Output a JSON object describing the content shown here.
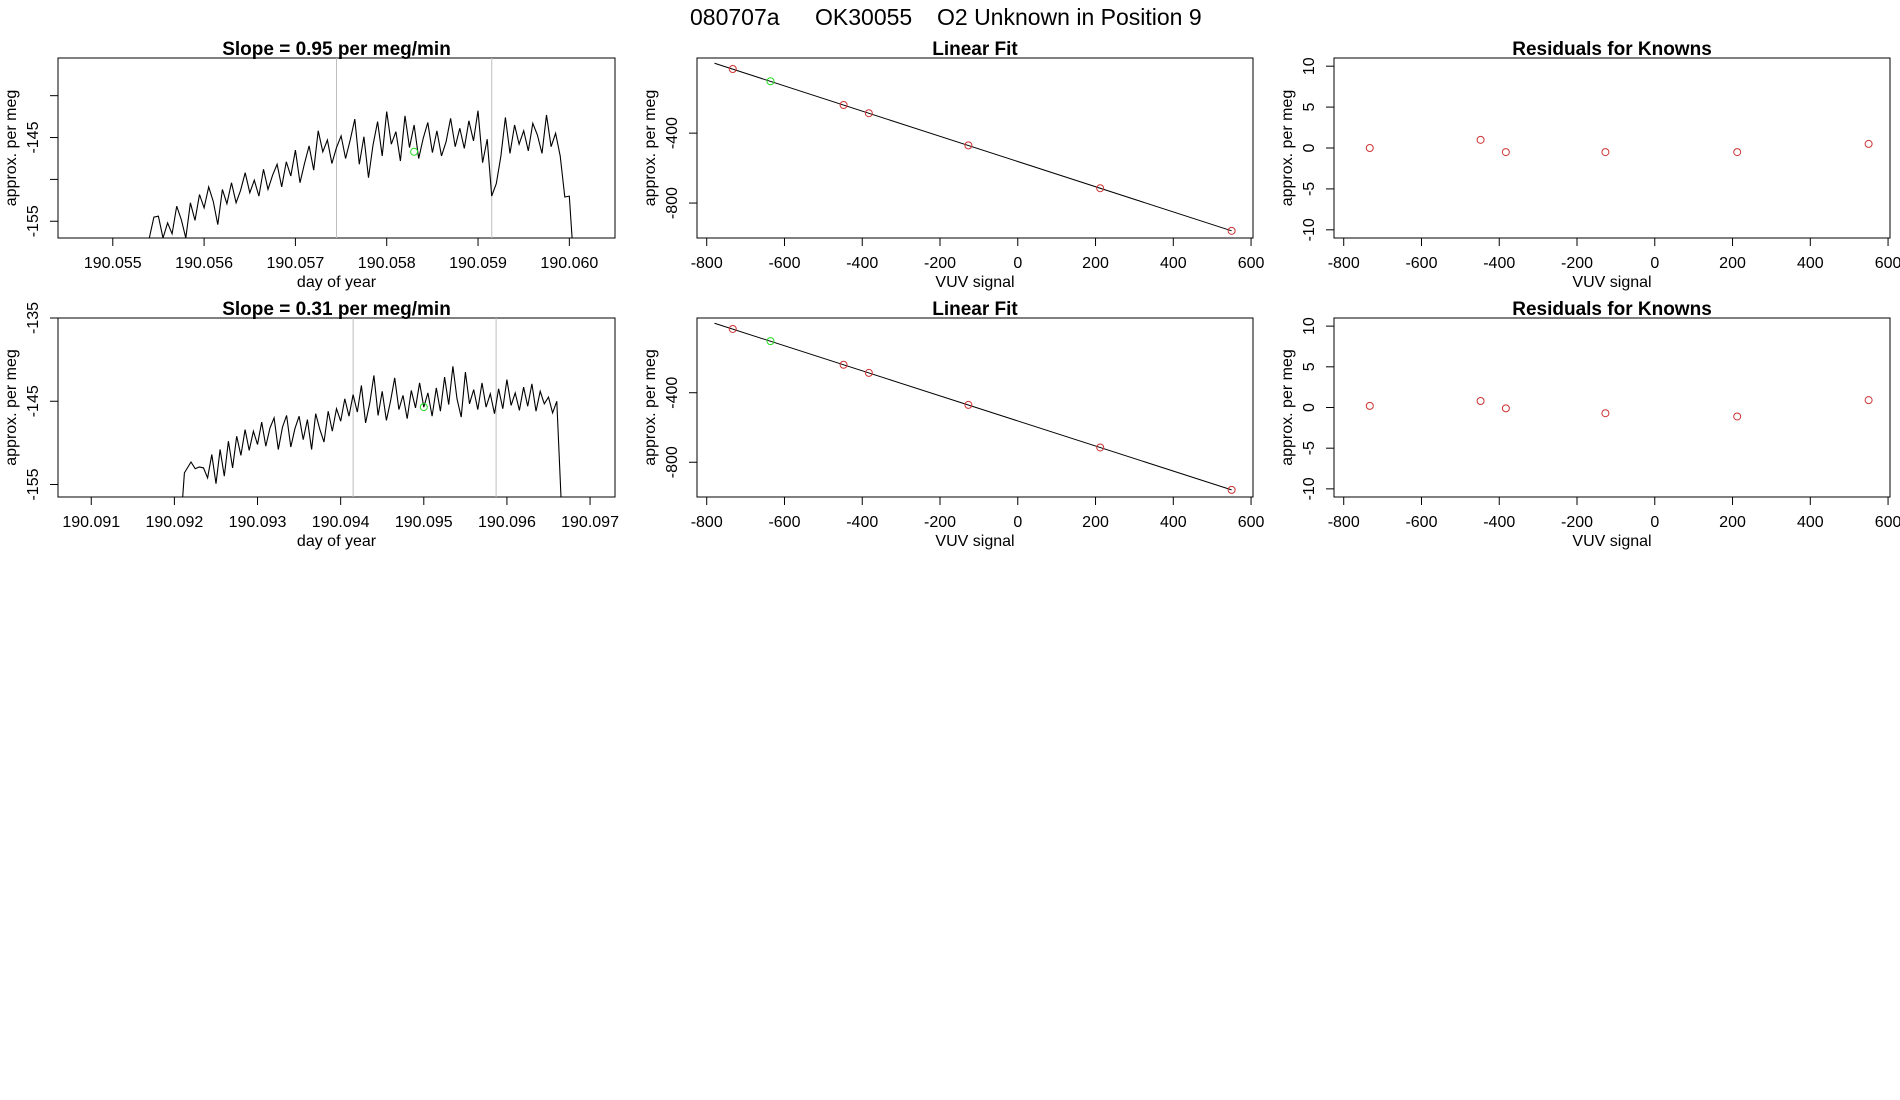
{
  "header": {
    "run_id": "080707a",
    "tank_id": "OK30055",
    "description": "O2 Unknown in Position  9"
  },
  "colors": {
    "trace": "#000000",
    "fit_line": "#000000",
    "known_point": "#cd3333",
    "unknown_point": "#22dd22",
    "marker_line": "#bebebe",
    "frame": "#000000"
  },
  "chart_data": [
    {
      "type": "line",
      "row": 1,
      "title": "Slope =  0.95  per meg/min",
      "xlabel": "day of year",
      "ylabel": "approx. per meg",
      "xlim": [
        190.0544,
        190.0605
      ],
      "ylim": [
        -157,
        -135.5
      ],
      "xticks": [
        190.055,
        190.056,
        190.057,
        190.058,
        190.059,
        190.06
      ],
      "xtick_labels": [
        "190.055",
        "190.056",
        "190.057",
        "190.058",
        "190.059",
        "190.060"
      ],
      "yticks": [
        -155,
        -150,
        -145,
        -140
      ],
      "ytick_labels": [
        "-155",
        "",
        "-145",
        ""
      ],
      "vlines": [
        190.05745,
        190.05915
      ],
      "highlight_point": {
        "x": 190.0583,
        "y": -146.7
      },
      "series": [
        {
          "x": [
            190.055,
            190.0554,
            190.05545,
            190.0555,
            190.05555,
            190.0556,
            190.05565,
            190.0557,
            190.05575,
            190.0558,
            190.05585,
            190.0559,
            190.05595,
            190.056,
            190.05605,
            190.0561,
            190.05615,
            190.0562,
            190.05625,
            190.0563,
            190.05635,
            190.0564,
            190.05645,
            190.0565,
            190.05655,
            190.0566,
            190.05665,
            190.0567,
            190.05675,
            190.0568,
            190.05685,
            190.0569,
            190.05695,
            190.057,
            190.05705,
            190.0571,
            190.05715,
            190.0572,
            190.05725,
            190.0573,
            190.05735,
            190.0574,
            190.05745,
            190.0575,
            190.05755,
            190.0576,
            190.05765,
            190.0577,
            190.05775,
            190.0578,
            190.05785,
            190.0579,
            190.05795,
            190.058,
            190.05805,
            190.0581,
            190.05815,
            190.0582,
            190.05825,
            190.0583,
            190.05835,
            190.0584,
            190.05845,
            190.0585,
            190.05855,
            190.0586,
            190.05865,
            190.0587,
            190.05875,
            190.0588,
            190.05885,
            190.0589,
            190.05895,
            190.059,
            190.05905,
            190.0591,
            190.05915,
            190.0592,
            190.05925,
            190.0593,
            190.05935,
            190.0594,
            190.05945,
            190.0595,
            190.05955,
            190.0596,
            190.05965,
            190.0597,
            190.05975,
            190.0598,
            190.05985,
            190.0599,
            190.05995,
            190.06,
            190.06003
          ],
          "y": [
            -157,
            -157,
            -154.5,
            -154.4,
            -157,
            -155.2,
            -156.5,
            -153.2,
            -154.8,
            -157,
            -152.8,
            -154.9,
            -151.8,
            -153.4,
            -150.9,
            -152.6,
            -155.4,
            -151.2,
            -152.9,
            -150.4,
            -152.8,
            -151.3,
            -149.2,
            -151.6,
            -150.1,
            -152.0,
            -148.8,
            -151.2,
            -149.5,
            -148.2,
            -150.9,
            -147.9,
            -149.6,
            -146.5,
            -150.4,
            -148.1,
            -146.0,
            -148.9,
            -144.2,
            -146.7,
            -145.3,
            -148.1,
            -146.2,
            -144.8,
            -147.5,
            -145.3,
            -142.8,
            -148.2,
            -144.9,
            -149.8,
            -145.9,
            -143.1,
            -147.2,
            -141.9,
            -145.8,
            -144.3,
            -147.8,
            -142.4,
            -146.2,
            -143.5,
            -147.5,
            -145.1,
            -143.2,
            -146.8,
            -144.2,
            -147.2,
            -145.5,
            -142.7,
            -146.1,
            -143.9,
            -146.3,
            -143.0,
            -145.4,
            -141.8,
            -148.0,
            -145.2,
            -152.0,
            -150.5,
            -147.2,
            -142.6,
            -146.9,
            -143.5,
            -145.8,
            -144.2,
            -146.6,
            -143.3,
            -144.7,
            -146.9,
            -142.3,
            -146.1,
            -144.5,
            -147.2,
            -152.1,
            -152.0,
            -157
          ]
        }
      ]
    },
    {
      "type": "scatter",
      "row": 1,
      "title": "Linear Fit",
      "xlabel": "VUV signal",
      "ylabel": "approx. per meg",
      "xlim": [
        -825,
        605
      ],
      "ylim": [
        -1000,
        30
      ],
      "xticks": [
        -800,
        -600,
        -400,
        -200,
        0,
        200,
        400,
        600
      ],
      "xtick_labels": [
        "-800",
        "-600",
        "-400",
        "-200",
        "0",
        "200",
        "400",
        "600"
      ],
      "yticks": [
        -800,
        -400
      ],
      "ytick_labels": [
        "-800",
        "-400"
      ],
      "fit_line": {
        "x": [
          -780,
          550
        ],
        "y": [
          0,
          -959
        ]
      },
      "knowns": {
        "x": [
          -733,
          -448,
          -383,
          -127,
          212,
          550
        ],
        "y": [
          -33,
          -239,
          -286,
          -470,
          -715,
          -959
        ]
      },
      "unknown": {
        "x": [
          -636
        ],
        "y": [
          -103
        ]
      }
    },
    {
      "type": "scatter",
      "row": 1,
      "title": "Residuals for Knowns",
      "xlabel": "VUV signal",
      "ylabel": "approx. per meg",
      "xlim": [
        -825,
        605
      ],
      "ylim": [
        -11,
        11
      ],
      "xticks": [
        -800,
        -600,
        -400,
        -200,
        0,
        200,
        400,
        600
      ],
      "xtick_labels": [
        "-800",
        "-600",
        "-400",
        "-200",
        "0",
        "200",
        "400",
        "600"
      ],
      "yticks": [
        -10,
        -5,
        0,
        5,
        10
      ],
      "ytick_labels": [
        "-10",
        "-5",
        "0",
        "5",
        "10"
      ],
      "knowns": {
        "x": [
          -733,
          -448,
          -383,
          -127,
          212,
          550
        ],
        "y": [
          0.0,
          1.0,
          -0.5,
          -0.5,
          -0.5,
          0.5
        ]
      }
    },
    {
      "type": "line",
      "row": 2,
      "title": "Slope =  0.31  per meg/min",
      "xlabel": "day of year",
      "ylabel": "approx. per meg",
      "xlim": [
        190.0906,
        190.0973
      ],
      "ylim": [
        -156.5,
        -135
      ],
      "xticks": [
        190.091,
        190.092,
        190.093,
        190.094,
        190.095,
        190.096,
        190.097
      ],
      "xtick_labels": [
        "190.091",
        "190.092",
        "190.093",
        "190.094",
        "190.095",
        "190.096",
        "190.097"
      ],
      "yticks": [
        -155,
        -145,
        -135
      ],
      "ytick_labels": [
        "-155",
        "-145",
        "-135"
      ],
      "vlines": [
        190.09415,
        190.09587
      ],
      "highlight_point": {
        "x": 190.095,
        "y": -145.7
      },
      "series": [
        {
          "x": [
            190.0921,
            190.09212,
            190.0922,
            190.09225,
            190.0923,
            190.09235,
            190.0924,
            190.09245,
            190.0925,
            190.09255,
            190.0926,
            190.09265,
            190.0927,
            190.09275,
            190.0928,
            190.09285,
            190.0929,
            190.09295,
            190.093,
            190.09305,
            190.0931,
            190.09315,
            190.0932,
            190.09325,
            190.0933,
            190.09335,
            190.0934,
            190.09345,
            190.0935,
            190.09355,
            190.0936,
            190.09365,
            190.0937,
            190.09375,
            190.0938,
            190.09385,
            190.0939,
            190.09395,
            190.094,
            190.09405,
            190.0941,
            190.09415,
            190.0942,
            190.09425,
            190.0943,
            190.09435,
            190.0944,
            190.09445,
            190.0945,
            190.09455,
            190.0946,
            190.09465,
            190.0947,
            190.09475,
            190.0948,
            190.09485,
            190.0949,
            190.09495,
            190.095,
            190.09505,
            190.0951,
            190.09515,
            190.0952,
            190.09525,
            190.0953,
            190.09535,
            190.0954,
            190.09545,
            190.0955,
            190.09555,
            190.0956,
            190.09565,
            190.0957,
            190.09575,
            190.0958,
            190.09585,
            190.0959,
            190.09595,
            190.096,
            190.09605,
            190.0961,
            190.09615,
            190.0962,
            190.09625,
            190.0963,
            190.09635,
            190.0964,
            190.09645,
            190.0965,
            190.09655,
            190.0966,
            190.09665,
            190.0967
          ],
          "y": [
            -156.5,
            -153.6,
            -152.3,
            -153.1,
            -152.9,
            -153.0,
            -154.2,
            -151.4,
            -154.9,
            -150.8,
            -154.0,
            -149.8,
            -153.0,
            -149.2,
            -151.5,
            -148.4,
            -150.9,
            -148.6,
            -150.2,
            -147.5,
            -150.4,
            -148.2,
            -147.0,
            -150.8,
            -148.1,
            -146.7,
            -150.5,
            -148.3,
            -146.8,
            -149.6,
            -147.2,
            -150.8,
            -146.5,
            -148.4,
            -149.9,
            -146.2,
            -148.6,
            -145.9,
            -147.4,
            -144.7,
            -146.8,
            -144.2,
            -146.3,
            -143.1,
            -147.6,
            -145.2,
            -141.9,
            -146.7,
            -143.8,
            -147.3,
            -145.0,
            -142.2,
            -146.0,
            -144.3,
            -147.1,
            -143.7,
            -145.8,
            -142.8,
            -145.7,
            -144.0,
            -146.8,
            -143.4,
            -146.2,
            -142.1,
            -145.4,
            -140.8,
            -144.7,
            -146.9,
            -141.5,
            -145.3,
            -143.6,
            -146.0,
            -142.8,
            -145.7,
            -144.1,
            -146.5,
            -143.5,
            -145.9,
            -142.4,
            -145.5,
            -144.0,
            -146.1,
            -143.3,
            -145.6,
            -142.9,
            -146.2,
            -143.8,
            -145.3,
            -144.5,
            -146.4,
            -145.0,
            -156.5,
            -156.5
          ]
        }
      ]
    },
    {
      "type": "scatter",
      "row": 2,
      "title": "Linear Fit",
      "xlabel": "VUV signal",
      "ylabel": "approx. per meg",
      "xlim": [
        -825,
        605
      ],
      "ylim": [
        -1000,
        30
      ],
      "xticks": [
        -800,
        -600,
        -400,
        -200,
        0,
        200,
        400,
        600
      ],
      "xtick_labels": [
        "-800",
        "-600",
        "-400",
        "-200",
        "0",
        "200",
        "400",
        "600"
      ],
      "yticks": [
        -800,
        -400
      ],
      "ytick_labels": [
        "-800",
        "-400"
      ],
      "fit_line": {
        "x": [
          -780,
          550
        ],
        "y": [
          0,
          -959
        ]
      },
      "knowns": {
        "x": [
          -733,
          -448,
          -383,
          -127,
          212,
          550
        ],
        "y": [
          -33,
          -239,
          -286,
          -470,
          -715,
          -959
        ]
      },
      "unknown": {
        "x": [
          -636
        ],
        "y": [
          -103
        ]
      }
    },
    {
      "type": "scatter",
      "row": 2,
      "title": "Residuals for Knowns",
      "xlabel": "VUV signal",
      "ylabel": "approx. per meg",
      "xlim": [
        -825,
        605
      ],
      "ylim": [
        -11,
        11
      ],
      "xticks": [
        -800,
        -600,
        -400,
        -200,
        0,
        200,
        400,
        600
      ],
      "xtick_labels": [
        "-800",
        "-600",
        "-400",
        "-200",
        "0",
        "200",
        "400",
        "600"
      ],
      "yticks": [
        -10,
        -5,
        0,
        5,
        10
      ],
      "ytick_labels": [
        "-10",
        "-5",
        "0",
        "5",
        "10"
      ],
      "knowns": {
        "x": [
          -733,
          -448,
          -383,
          -127,
          212,
          550
        ],
        "y": [
          0.2,
          0.8,
          -0.1,
          -0.7,
          -1.1,
          0.9
        ]
      }
    }
  ]
}
